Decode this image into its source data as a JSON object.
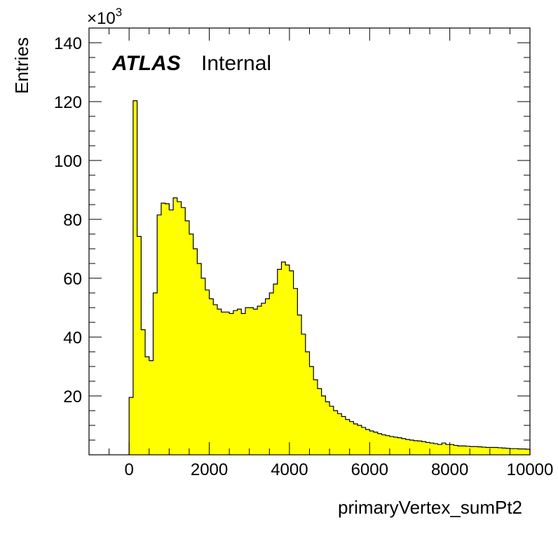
{
  "chart_data": {
    "type": "bar",
    "title": "",
    "xlabel": "primaryVertex_sumPt2",
    "ylabel": "Entries",
    "y_multiplier": "×10",
    "y_multiplier_exponent": "3",
    "annotation": {
      "experiment": "ATLAS",
      "status": "Internal"
    },
    "xlim": [
      -1000,
      10000
    ],
    "ylim": [
      0,
      145
    ],
    "x_ticks": [
      0,
      2000,
      4000,
      6000,
      8000,
      10000
    ],
    "x_tick_labels": [
      "0",
      "2000",
      "4000",
      "6000",
      "8000",
      "10000"
    ],
    "y_ticks": [
      20,
      40,
      60,
      80,
      100,
      120,
      140
    ],
    "y_tick_labels": [
      "20",
      "40",
      "60",
      "80",
      "100",
      "120",
      "140"
    ],
    "bin_edges_start": 0,
    "bin_width": 100,
    "fill_color": "#ffff00",
    "line_color": "#000000",
    "values": [
      19.5,
      120.3,
      74.2,
      42.5,
      33.3,
      32.0,
      55.0,
      81.5,
      85.5,
      85.3,
      83.2,
      87.3,
      86.0,
      84.0,
      79.5,
      75.0,
      70.0,
      65.0,
      60.0,
      56.0,
      53.0,
      51.0,
      49.5,
      48.5,
      48.5,
      48.0,
      49.0,
      49.5,
      48.0,
      50.0,
      50.0,
      49.5,
      50.5,
      51.5,
      53.0,
      55.0,
      58.0,
      63.0,
      65.5,
      64.5,
      62.5,
      56.5,
      47.5,
      41.0,
      35.0,
      30.0,
      25.5,
      22.5,
      20.0,
      18.0,
      16.5,
      15.0,
      14.0,
      13.0,
      12.0,
      11.3,
      10.5,
      10.0,
      9.3,
      8.6,
      8.1,
      7.7,
      7.2,
      6.8,
      6.5,
      6.2,
      6.0,
      5.8,
      5.5,
      5.2,
      5.0,
      4.8,
      4.7,
      4.5,
      4.2,
      4.0,
      3.8,
      3.5,
      4.0,
      3.5,
      3.5,
      3.2,
      3.0,
      3.0,
      2.9,
      2.8,
      2.8,
      2.7,
      2.6,
      2.5,
      2.5,
      2.5,
      2.4,
      2.3,
      2.2,
      2.1,
      2.1,
      2.0,
      2.0,
      1.9
    ]
  }
}
